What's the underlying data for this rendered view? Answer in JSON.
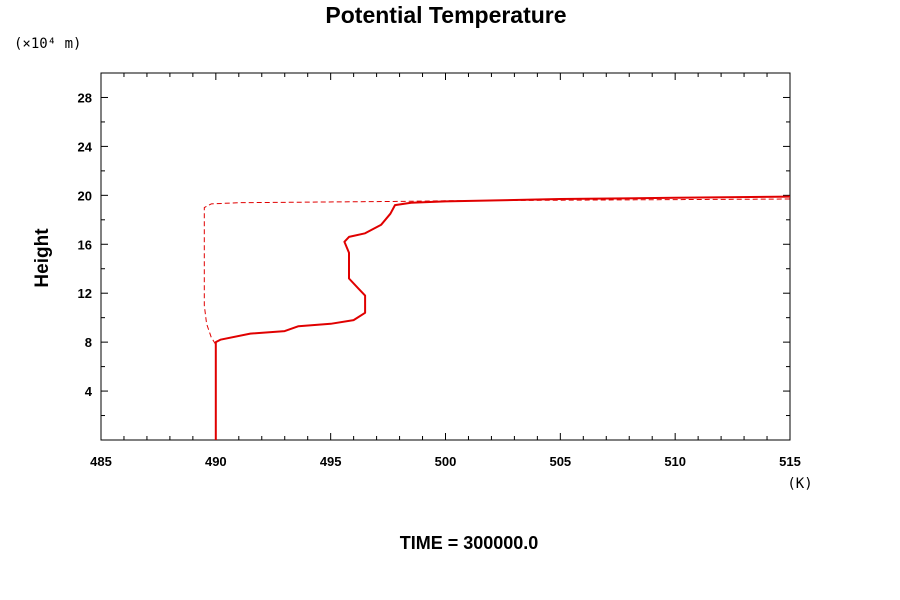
{
  "chart_data": {
    "type": "line",
    "title": "Potential Temperature",
    "ylabel": "Height",
    "yunit": "(×10⁴ m)",
    "xunit": "(K)",
    "footer": "TIME = 300000.0",
    "xlim": [
      485,
      515
    ],
    "ylim": [
      0,
      30
    ],
    "xticks": [
      "485",
      "490",
      "495",
      "500",
      "505",
      "510",
      "515"
    ],
    "yticks": [
      "4",
      "8",
      "12",
      "16",
      "20",
      "24",
      "28"
    ],
    "grid": false,
    "series_color": "#e00000",
    "series": [
      {
        "style": "solid",
        "points": [
          [
            490.0,
            0.0
          ],
          [
            490.0,
            8.0
          ],
          [
            490.2,
            8.2
          ],
          [
            491.5,
            8.7
          ],
          [
            493.0,
            8.9
          ],
          [
            493.6,
            9.3
          ],
          [
            495.0,
            9.5
          ],
          [
            496.0,
            9.8
          ],
          [
            496.5,
            10.4
          ],
          [
            496.5,
            11.8
          ],
          [
            496.2,
            12.4
          ],
          [
            495.8,
            13.2
          ],
          [
            495.8,
            15.3
          ],
          [
            495.6,
            16.2
          ],
          [
            495.8,
            16.6
          ],
          [
            496.5,
            16.9
          ],
          [
            497.2,
            17.6
          ],
          [
            497.6,
            18.5
          ],
          [
            497.8,
            19.2
          ],
          [
            498.5,
            19.4
          ],
          [
            500.0,
            19.5
          ],
          [
            505.0,
            19.7
          ],
          [
            510.0,
            19.8
          ],
          [
            515.0,
            19.9
          ]
        ]
      },
      {
        "style": "dashed",
        "points": [
          [
            490.0,
            0.0
          ],
          [
            490.0,
            7.8
          ],
          [
            489.8,
            8.4
          ],
          [
            489.6,
            9.5
          ],
          [
            489.5,
            11.0
          ],
          [
            489.5,
            19.0
          ],
          [
            489.8,
            19.3
          ],
          [
            491.0,
            19.4
          ],
          [
            498.0,
            19.5
          ],
          [
            500.0,
            19.55
          ],
          [
            505.0,
            19.6
          ],
          [
            510.0,
            19.65
          ],
          [
            515.0,
            19.7
          ]
        ]
      }
    ]
  }
}
